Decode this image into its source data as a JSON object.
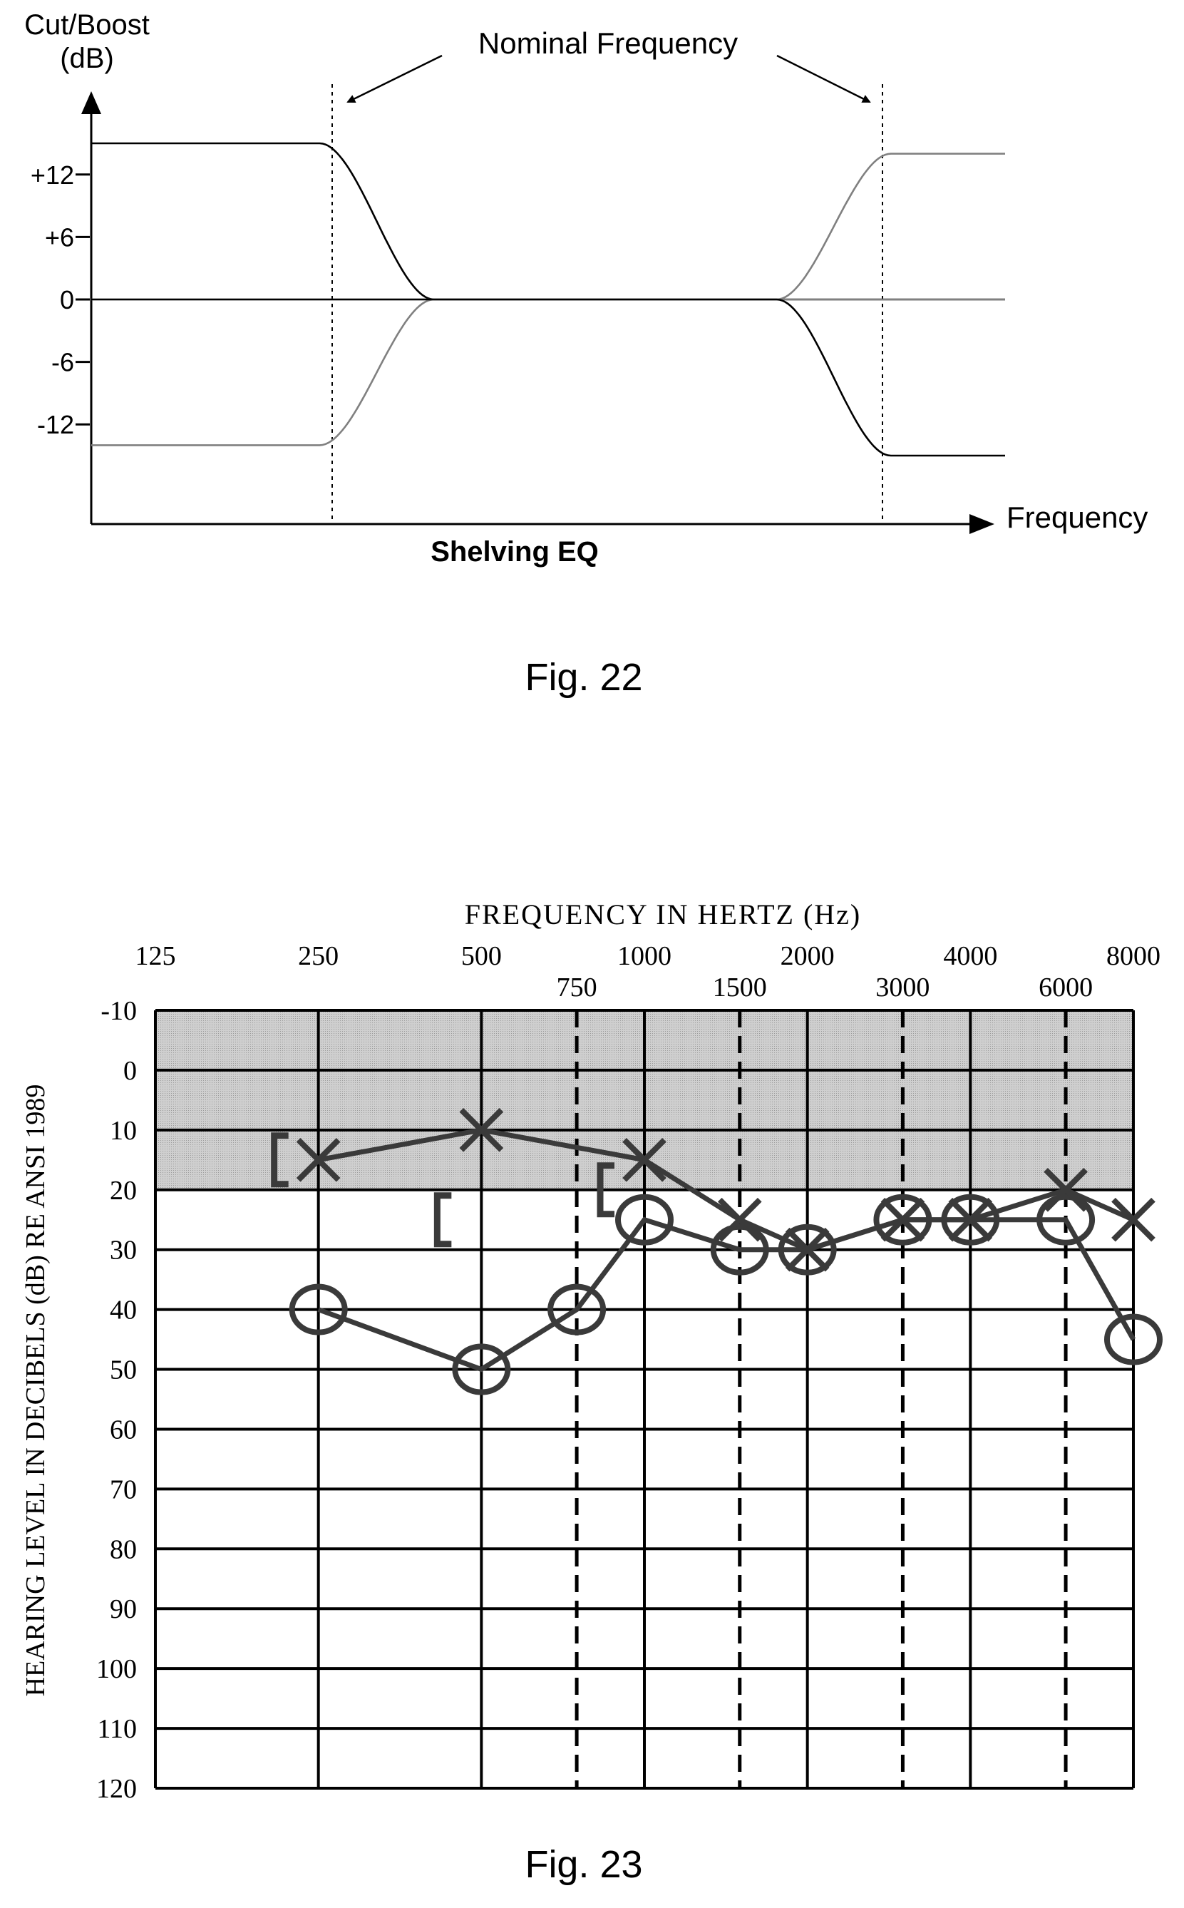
{
  "figures": [
    {
      "caption": "Fig. 22"
    },
    {
      "caption": "Fig. 23"
    }
  ],
  "chart_data": [
    {
      "type": "line",
      "title": "Shelving EQ",
      "xlabel": "Frequency",
      "ylabel": "Cut/Boost\n(dB)",
      "ylabel_lines": [
        "Cut/Boost",
        "(dB)"
      ],
      "yticks": [
        "+12",
        "+6",
        "0",
        "-6",
        "-12"
      ],
      "ytick_values": [
        12,
        6,
        0,
        -6,
        -12
      ],
      "ylim": [
        -25,
        16
      ],
      "annotation": "Nominal Frequency",
      "series": [
        {
          "role": "low-shelf boost",
          "color": "#000000",
          "points": [
            [
              0,
              15
            ],
            [
              0.25,
              15
            ],
            [
              0.375,
              0
            ],
            [
              1,
              0
            ]
          ]
        },
        {
          "role": "low-shelf cut",
          "color": "#808080",
          "points": [
            [
              0,
              -14
            ],
            [
              0.25,
              -14
            ],
            [
              0.375,
              0
            ],
            [
              1,
              0
            ]
          ]
        },
        {
          "role": "high-shelf boost",
          "color": "#808080",
          "points": [
            [
              0,
              0
            ],
            [
              0.75,
              0
            ],
            [
              0.875,
              14
            ],
            [
              1,
              14
            ]
          ]
        },
        {
          "role": "high-shelf cut",
          "color": "#000000",
          "points": [
            [
              0,
              0
            ],
            [
              0.75,
              0
            ],
            [
              0.875,
              -15
            ],
            [
              1,
              -15
            ]
          ]
        }
      ],
      "zero_line": "dashed",
      "nominal_frequency_lines": "dotted"
    },
    {
      "type": "line",
      "title": "FREQUENCY IN HERTZ (Hz)",
      "ylabel": "HEARING LEVEL IN DECIBELS (dB) RE ANSI 1989",
      "x_top_labels": [
        "125",
        "250",
        "500",
        "1000",
        "2000",
        "4000",
        "8000"
      ],
      "x_bottom_labels": [
        "750",
        "1500",
        "3000",
        "6000"
      ],
      "octave_frequencies": [
        125,
        250,
        500,
        1000,
        2000,
        4000,
        8000
      ],
      "interoctave_frequencies": [
        750,
        1500,
        3000,
        6000
      ],
      "yticks": [
        "-10",
        "0",
        "10",
        "20",
        "30",
        "40",
        "50",
        "60",
        "70",
        "80",
        "90",
        "100",
        "110",
        "120"
      ],
      "ylim": [
        -10,
        120
      ],
      "y_inverted": true,
      "shaded_range": [
        -10,
        20
      ],
      "shade_color": "#c8c8c8",
      "series": [
        {
          "marker": "O",
          "x": [
            250,
            500,
            750,
            1000,
            1500,
            2000,
            3000,
            4000,
            6000,
            8000
          ],
          "y": [
            40,
            50,
            40,
            25,
            30,
            30,
            25,
            25,
            25,
            45
          ]
        },
        {
          "marker": "X",
          "x": [
            250,
            500,
            1000,
            1500,
            2000,
            3000,
            4000,
            6000,
            8000
          ],
          "y": [
            15,
            10,
            15,
            25,
            30,
            25,
            25,
            20,
            25
          ]
        },
        {
          "marker": "[",
          "x": [
            250,
            500
          ],
          "y": [
            15,
            25
          ]
        },
        {
          "marker": "[",
          "x": [
            1000
          ],
          "y": [
            20
          ]
        }
      ]
    }
  ]
}
